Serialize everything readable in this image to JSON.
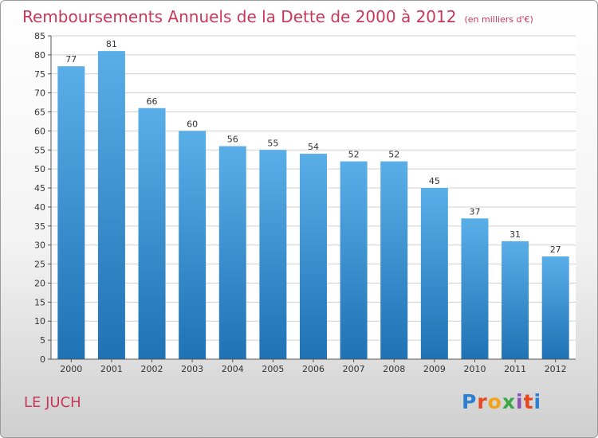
{
  "header": {
    "title": "Remboursements Annuels de la Dette de 2000 à 2012",
    "unit": "(en milliers d'€)"
  },
  "footer": {
    "commune": "LE JUCH",
    "logo_text": "Proxiti"
  },
  "colors": {
    "title": "#c8385a",
    "bar_top": "#5aaee8",
    "bar_bottom": "#1f72b4",
    "grid": "#d0d0d0"
  },
  "chart_data": {
    "type": "bar",
    "title": "Remboursements Annuels de la Dette de 2000 à 2012",
    "subtitle": "(en milliers d'€)",
    "xlabel": "",
    "ylabel": "",
    "categories": [
      "2000",
      "2001",
      "2002",
      "2003",
      "2004",
      "2005",
      "2006",
      "2007",
      "2008",
      "2009",
      "2010",
      "2011",
      "2012"
    ],
    "values": [
      77,
      81,
      66,
      60,
      56,
      55,
      54,
      52,
      52,
      45,
      37,
      31,
      27
    ],
    "ylim": [
      0,
      85
    ],
    "yticks": [
      0,
      5,
      10,
      15,
      20,
      25,
      30,
      35,
      40,
      45,
      50,
      55,
      60,
      65,
      70,
      75,
      80,
      85
    ],
    "grid": true,
    "data_labels": true
  }
}
